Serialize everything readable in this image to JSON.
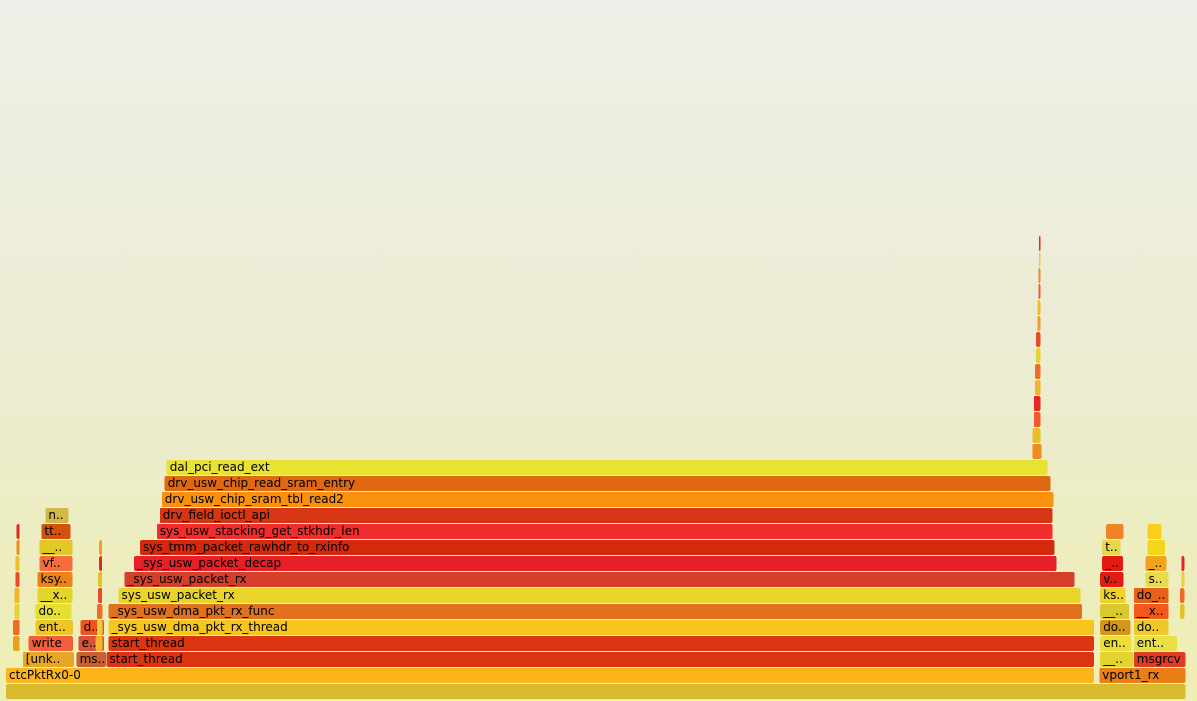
{
  "chart_data": {
    "type": "flamegraph",
    "title": "",
    "frames": [
      {
        "label": "",
        "depth": 0,
        "start": 0.0,
        "width": 1.0,
        "color": "#d8ba30"
      },
      {
        "label": "ctcPktRx0-0",
        "depth": 1,
        "start": 0.0,
        "width": 0.9223,
        "color": "#fbb61e"
      },
      {
        "label": "vport1_rx",
        "depth": 1,
        "start": 0.9265,
        "width": 0.0735,
        "color": "#ea7f15"
      },
      {
        "label": "[unk..",
        "depth": 2,
        "start": 0.0142,
        "width": 0.0438,
        "color": "#e6a628"
      },
      {
        "label": "ms..",
        "depth": 2,
        "start": 0.0598,
        "width": 0.0254,
        "color": "#c75f31"
      },
      {
        "label": "start_thread",
        "depth": 2,
        "start": 0.0852,
        "width": 0.8372,
        "color": "#dc3413"
      },
      {
        "label": "__..",
        "depth": 2,
        "start": 0.9273,
        "width": 0.0285,
        "color": "#e3d32e"
      },
      {
        "label": "msgrcv",
        "depth": 2,
        "start": 0.9558,
        "width": 0.0442,
        "color": "#e23b25"
      },
      {
        "label": "write",
        "depth": 3,
        "start": 0.0192,
        "width": 0.038,
        "color": "#f25f3b"
      },
      {
        "label": "e..",
        "depth": 3,
        "start": 0.0615,
        "width": 0.022,
        "color": "#d85336"
      },
      {
        "label": "start_thread",
        "depth": 3,
        "start": 0.0869,
        "width": 0.8355,
        "color": "#dc3512"
      },
      {
        "label": "en..",
        "depth": 3,
        "start": 0.9273,
        "width": 0.027,
        "color": "#eddd38"
      },
      {
        "label": "ent..",
        "depth": 3,
        "start": 0.9558,
        "width": 0.037,
        "color": "#eadf46"
      },
      {
        "label": "ent..",
        "depth": 4,
        "start": 0.025,
        "width": 0.0322,
        "color": "#eec628"
      },
      {
        "label": "d..",
        "depth": 4,
        "start": 0.0632,
        "width": 0.0203,
        "color": "#f2521e"
      },
      {
        "label": "_sys_usw_dma_pkt_rx_thread",
        "depth": 4,
        "start": 0.0869,
        "width": 0.8355,
        "color": "#f5c61d"
      },
      {
        "label": "do..",
        "depth": 4,
        "start": 0.9273,
        "width": 0.026,
        "color": "#d3951a"
      },
      {
        "label": "do..",
        "depth": 4,
        "start": 0.9558,
        "width": 0.03,
        "color": "#efc92c"
      },
      {
        "label": "do..",
        "depth": 5,
        "start": 0.025,
        "width": 0.031,
        "color": "#e5df32"
      },
      {
        "label": "_sys_usw_dma_pkt_rx_func",
        "depth": 5,
        "start": 0.0869,
        "width": 0.8255,
        "color": "#e0721f"
      },
      {
        "label": "__..",
        "depth": 5,
        "start": 0.9273,
        "width": 0.025,
        "color": "#d8c92d"
      },
      {
        "label": "__x..",
        "depth": 5,
        "start": 0.9558,
        "width": 0.03,
        "color": "#f3571a"
      },
      {
        "label": "__x..",
        "depth": 6,
        "start": 0.0267,
        "width": 0.03,
        "color": "#e3d42a"
      },
      {
        "label": "sys_usw_packet_rx",
        "depth": 6,
        "start": 0.0953,
        "width": 0.8155,
        "color": "#e9d42c"
      },
      {
        "label": "ks..",
        "depth": 6,
        "start": 0.9273,
        "width": 0.022,
        "color": "#edd22c"
      },
      {
        "label": "do_..",
        "depth": 6,
        "start": 0.9558,
        "width": 0.03,
        "color": "#e56119"
      },
      {
        "label": "ksy..",
        "depth": 7,
        "start": 0.0267,
        "width": 0.03,
        "color": "#eb8418"
      },
      {
        "label": "_sys_usw_packet_rx",
        "depth": 7,
        "start": 0.1003,
        "width": 0.8055,
        "color": "#d43f2a"
      },
      {
        "label": "v..",
        "depth": 7,
        "start": 0.9273,
        "width": 0.02,
        "color": "#df1d14"
      },
      {
        "label": "s..",
        "depth": 7,
        "start": 0.9658,
        "width": 0.02,
        "color": "#e9d94e"
      },
      {
        "label": "vf..",
        "depth": 8,
        "start": 0.0284,
        "width": 0.0283,
        "color": "#f76c3c"
      },
      {
        "label": "_sys_usw_packet_decap",
        "depth": 8,
        "start": 0.1086,
        "width": 0.7821,
        "color": "#e71f26"
      },
      {
        "label": "_..",
        "depth": 8,
        "start": 0.929,
        "width": 0.018,
        "color": "#e41910"
      },
      {
        "label": "_..",
        "depth": 8,
        "start": 0.9658,
        "width": 0.018,
        "color": "#f3a21b"
      },
      {
        "label": "__..",
        "depth": 9,
        "start": 0.0284,
        "width": 0.0283,
        "color": "#e1c826"
      },
      {
        "label": "sys_tmm_packet_rawhdr_to_rxinfo",
        "depth": 9,
        "start": 0.1136,
        "width": 0.7753,
        "color": "#d5290e"
      },
      {
        "label": "t..",
        "depth": 9,
        "start": 0.929,
        "width": 0.016,
        "color": "#e8d64c"
      },
      {
        "label": "",
        "depth": 9,
        "start": 0.9675,
        "width": 0.015,
        "color": "#f3d61c"
      },
      {
        "label": "tt..",
        "depth": 10,
        "start": 0.03,
        "width": 0.025,
        "color": "#d3520e"
      },
      {
        "label": "sys_usw_stacking_get_stkhdr_len",
        "depth": 10,
        "start": 0.1278,
        "width": 0.7594,
        "color": "#f12c2c"
      },
      {
        "label": "",
        "depth": 10,
        "start": 0.9324,
        "width": 0.015,
        "color": "#f08228"
      },
      {
        "label": "",
        "depth": 10,
        "start": 0.9675,
        "width": 0.012,
        "color": "#f9cf1c"
      },
      {
        "label": "n..",
        "depth": 11,
        "start": 0.0334,
        "width": 0.02,
        "color": "#d4b74a"
      },
      {
        "label": "drv_field_ioctl_api",
        "depth": 11,
        "start": 0.1303,
        "width": 0.7569,
        "color": "#d63613"
      },
      {
        "label": "drv_usw_chip_sram_tbl_read2",
        "depth": 12,
        "start": 0.132,
        "width": 0.756,
        "color": "#f9900e"
      },
      {
        "label": "drv_usw_chip_read_sram_entry",
        "depth": 13,
        "start": 0.1345,
        "width": 0.751,
        "color": "#e06812"
      },
      {
        "label": "dal_pci_read_ext",
        "depth": 14,
        "start": 0.1362,
        "width": 0.7467,
        "color": "#e8e230"
      },
      {
        "label": "",
        "depth": 15,
        "start": 0.87,
        "width": 0.008,
        "color": "#f08a1e"
      },
      {
        "label": "",
        "depth": 16,
        "start": 0.87,
        "width": 0.007,
        "color": "#e8c028"
      },
      {
        "label": "",
        "depth": 17,
        "start": 0.871,
        "width": 0.006,
        "color": "#f15a2a"
      },
      {
        "label": "",
        "depth": 18,
        "start": 0.871,
        "width": 0.006,
        "color": "#e32820"
      },
      {
        "label": "",
        "depth": 19,
        "start": 0.872,
        "width": 0.005,
        "color": "#f5b52a"
      },
      {
        "label": "",
        "depth": 20,
        "start": 0.872,
        "width": 0.005,
        "color": "#f06a28"
      },
      {
        "label": "",
        "depth": 21,
        "start": 0.873,
        "width": 0.004,
        "color": "#e8d035"
      },
      {
        "label": "",
        "depth": 22,
        "start": 0.873,
        "width": 0.004,
        "color": "#e84a2a"
      },
      {
        "label": "",
        "depth": 23,
        "start": 0.874,
        "width": 0.003,
        "color": "#f59c28"
      },
      {
        "label": "",
        "depth": 24,
        "start": 0.874,
        "width": 0.003,
        "color": "#e8c028"
      },
      {
        "label": "",
        "depth": 25,
        "start": 0.875,
        "width": 0.002,
        "color": "#f15a2a"
      },
      {
        "label": "",
        "depth": 26,
        "start": 0.875,
        "width": 0.002,
        "color": "#f08a1e"
      },
      {
        "label": "",
        "depth": 27,
        "start": 0.8755,
        "width": 0.0015,
        "color": "#e8d035"
      },
      {
        "label": "",
        "depth": 28,
        "start": 0.8755,
        "width": 0.0015,
        "color": "#e32820"
      },
      {
        "label": "",
        "depth": 3,
        "start": 0.006,
        "width": 0.006,
        "color": "#e8a020"
      },
      {
        "label": "",
        "depth": 4,
        "start": 0.006,
        "width": 0.006,
        "color": "#f06a28"
      },
      {
        "label": "",
        "depth": 5,
        "start": 0.007,
        "width": 0.005,
        "color": "#e8d035"
      },
      {
        "label": "",
        "depth": 6,
        "start": 0.007,
        "width": 0.005,
        "color": "#f5b52a"
      },
      {
        "label": "",
        "depth": 7,
        "start": 0.008,
        "width": 0.004,
        "color": "#e84a2a"
      },
      {
        "label": "",
        "depth": 8,
        "start": 0.008,
        "width": 0.004,
        "color": "#e8c028"
      },
      {
        "label": "",
        "depth": 9,
        "start": 0.009,
        "width": 0.003,
        "color": "#f08a1e"
      },
      {
        "label": "",
        "depth": 10,
        "start": 0.009,
        "width": 0.003,
        "color": "#e32820"
      },
      {
        "label": "",
        "depth": 3,
        "start": 0.076,
        "width": 0.006,
        "color": "#f5b52a"
      },
      {
        "label": "",
        "depth": 4,
        "start": 0.077,
        "width": 0.005,
        "color": "#e8d035"
      },
      {
        "label": "",
        "depth": 5,
        "start": 0.077,
        "width": 0.005,
        "color": "#f06a28"
      },
      {
        "label": "",
        "depth": 6,
        "start": 0.078,
        "width": 0.004,
        "color": "#e84a2a"
      },
      {
        "label": "",
        "depth": 7,
        "start": 0.078,
        "width": 0.004,
        "color": "#e8c028"
      },
      {
        "label": "",
        "depth": 8,
        "start": 0.079,
        "width": 0.003,
        "color": "#e32820"
      },
      {
        "label": "",
        "depth": 9,
        "start": 0.079,
        "width": 0.003,
        "color": "#f59c28"
      },
      {
        "label": "",
        "depth": 5,
        "start": 0.995,
        "width": 0.004,
        "color": "#e8c028"
      },
      {
        "label": "",
        "depth": 6,
        "start": 0.995,
        "width": 0.004,
        "color": "#f06a28"
      },
      {
        "label": "",
        "depth": 7,
        "start": 0.996,
        "width": 0.003,
        "color": "#e8d035"
      },
      {
        "label": "",
        "depth": 8,
        "start": 0.996,
        "width": 0.003,
        "color": "#e32820"
      }
    ]
  }
}
